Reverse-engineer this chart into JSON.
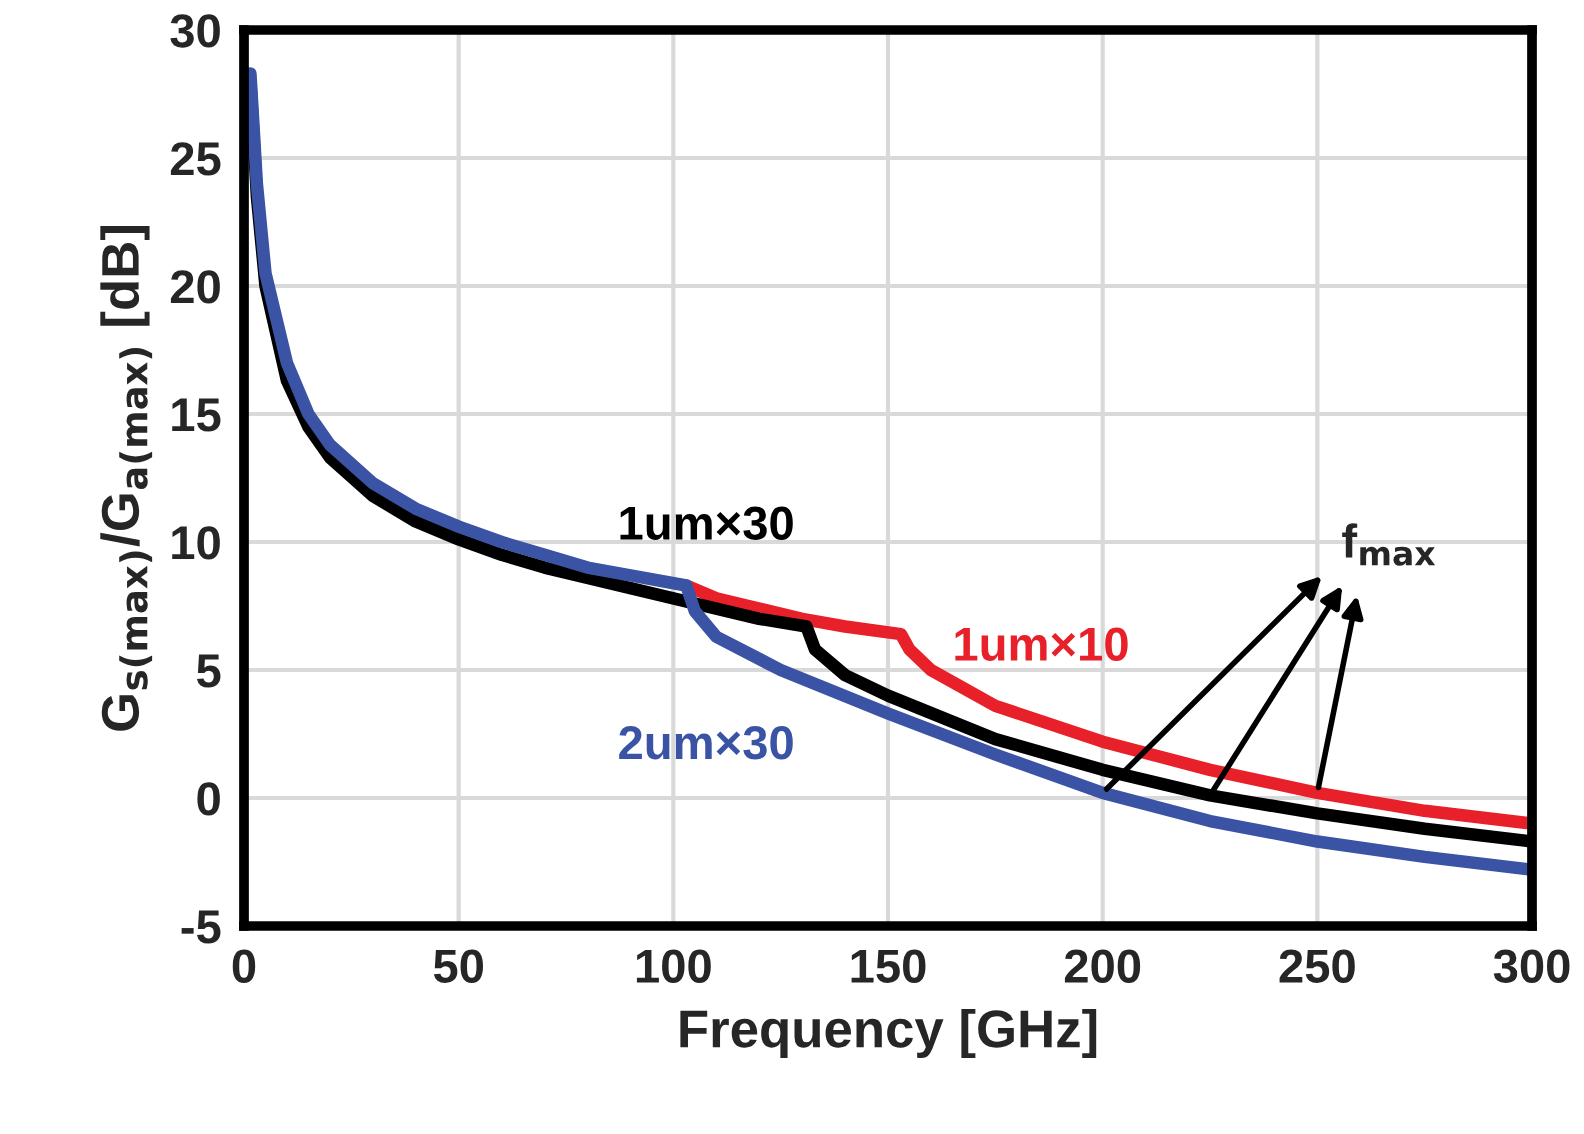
{
  "chart_data": {
    "type": "line",
    "xlabel": "Frequency [GHz]",
    "ylabel": "G$_{s(max)}$/G$_{a(max)}$ [dB]",
    "xlim": [
      0,
      300
    ],
    "xticks": [
      0,
      50,
      100,
      150,
      200,
      250,
      300
    ],
    "ylim": [
      -5,
      30
    ],
    "yticks": [
      -5,
      0,
      5,
      10,
      15,
      20,
      25,
      30
    ],
    "grid": true,
    "marker": "none",
    "line_style": "solid",
    "annotations": [
      "f$_{max}$"
    ],
    "series": [
      {
        "name": "1um×10",
        "color": "#e8202a",
        "x": [
          103,
          110,
          120,
          130,
          140,
          153,
          155,
          160,
          175,
          200,
          225,
          250,
          275,
          300
        ],
        "values": [
          8.3,
          7.8,
          7.4,
          7.0,
          6.7,
          6.4,
          5.8,
          5.0,
          3.6,
          2.2,
          1.1,
          0.2,
          -0.5,
          -1.0
        ]
      },
      {
        "name": "1um×30",
        "color": "#000000",
        "x": [
          1.5,
          3,
          5,
          10,
          15,
          20,
          30,
          40,
          50,
          60,
          70,
          80,
          90,
          100,
          110,
          120,
          131,
          133,
          140,
          150,
          175,
          200,
          225,
          250,
          275,
          300
        ],
        "values": [
          28,
          23.5,
          20,
          16.3,
          14.5,
          13.3,
          11.8,
          10.8,
          10.1,
          9.5,
          9,
          8.6,
          8.2,
          7.8,
          7.4,
          7.0,
          6.7,
          5.8,
          4.8,
          4.0,
          2.3,
          1.1,
          0.1,
          -0.6,
          -1.2,
          -1.7
        ]
      },
      {
        "name": "2um×30",
        "color": "#3a53a4",
        "x": [
          1.5,
          3,
          5,
          10,
          15,
          20,
          30,
          40,
          50,
          60,
          70,
          80,
          90,
          103,
          105,
          110,
          125,
          150,
          175,
          200,
          225,
          250,
          275,
          300
        ],
        "values": [
          28.3,
          24,
          20.5,
          17,
          15,
          13.8,
          12.3,
          11.3,
          10.6,
          10,
          9.5,
          9,
          8.7,
          8.3,
          7.3,
          6.3,
          5.0,
          3.3,
          1.7,
          0.2,
          -0.9,
          -1.7,
          -2.3,
          -2.8
        ]
      }
    ]
  }
}
